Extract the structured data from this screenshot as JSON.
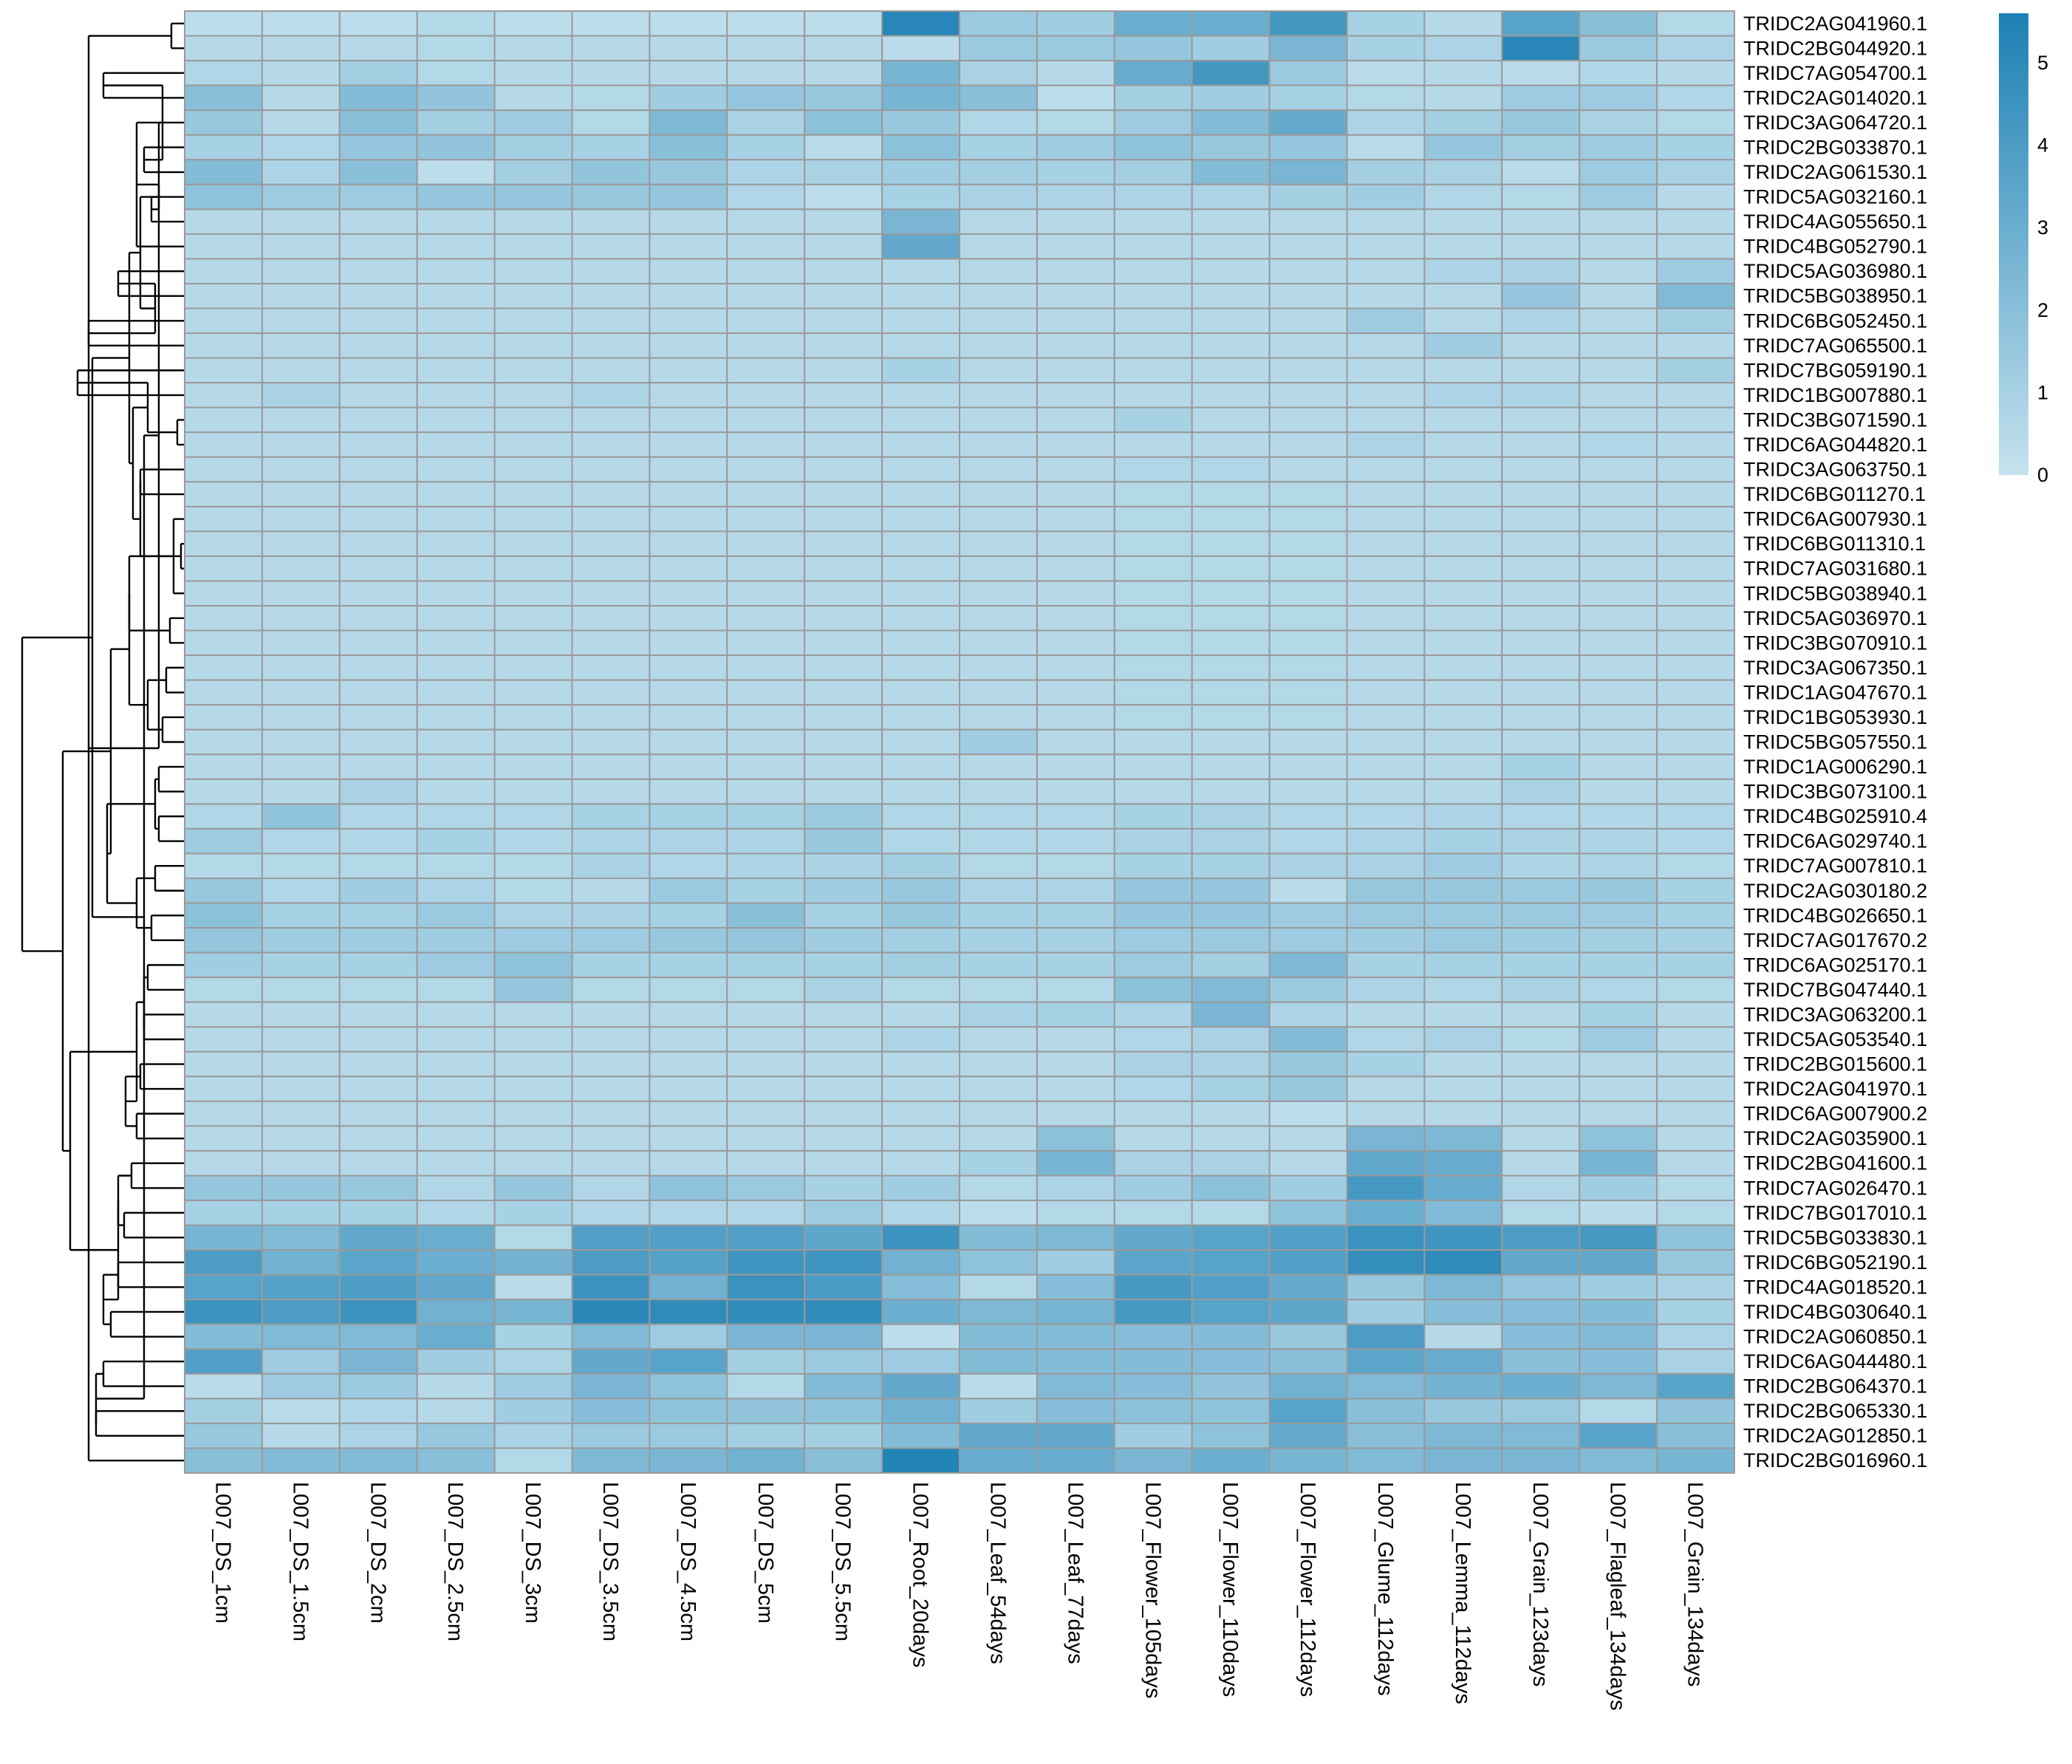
{
  "chart_data": {
    "type": "heatmap",
    "colors": {
      "low": "#c5e2ee",
      "high": "#1c80b4",
      "grid": "#9a9a9a",
      "dendrogram": "#000000"
    },
    "value_range": [
      0,
      5.6
    ],
    "legend": {
      "position": "top-right",
      "ticks": [
        0,
        1,
        2,
        3,
        4,
        5
      ]
    },
    "columns": [
      "L007_DS_1cm",
      "L007_DS_1.5cm",
      "L007_DS_2cm",
      "L007_DS_2.5cm",
      "L007_DS_3cm",
      "L007_DS_3.5cm",
      "L007_DS_4.5cm",
      "L007_DS_5cm",
      "L007_DS_5.5cm",
      "L007_Root_20days",
      "L007_Leaf_54days",
      "L007_Leaf_77days",
      "L007_Flower_105days",
      "L007_Flower_110days",
      "L007_Flower_112days",
      "L007_Glume_112days",
      "L007_Lemma_112days",
      "L007_Grain_123days",
      "L007_Flagleaf_134days",
      "L007_Grain_134days"
    ],
    "rows": [
      "TRIDC2AG041960.1",
      "TRIDC2BG044920.1",
      "TRIDC7AG054700.1",
      "TRIDC2AG014020.1",
      "TRIDC3AG064720.1",
      "TRIDC2BG033870.1",
      "TRIDC2AG061530.1",
      "TRIDC5AG032160.1",
      "TRIDC4AG055650.1",
      "TRIDC4BG052790.1",
      "TRIDC5AG036980.1",
      "TRIDC5BG038950.1",
      "TRIDC6BG052450.1",
      "TRIDC7AG065500.1",
      "TRIDC7BG059190.1",
      "TRIDC1BG007880.1",
      "TRIDC3BG071590.1",
      "TRIDC6AG044820.1",
      "TRIDC3AG063750.1",
      "TRIDC6BG011270.1",
      "TRIDC6AG007930.1",
      "TRIDC6BG011310.1",
      "TRIDC7AG031680.1",
      "TRIDC5BG038940.1",
      "TRIDC5AG036970.1",
      "TRIDC3BG070910.1",
      "TRIDC3AG067350.1",
      "TRIDC1AG047670.1",
      "TRIDC1BG053930.1",
      "TRIDC5BG057550.1",
      "TRIDC1AG006290.1",
      "TRIDC3BG073100.1",
      "TRIDC4BG025910.4",
      "TRIDC6AG029740.1",
      "TRIDC7AG007810.1",
      "TRIDC2AG030180.2",
      "TRIDC4BG026650.1",
      "TRIDC7AG017670.2",
      "TRIDC6AG025170.1",
      "TRIDC7BG047440.1",
      "TRIDC3AG063200.1",
      "TRIDC5AG053540.1",
      "TRIDC2BG015600.1",
      "TRIDC2AG041970.1",
      "TRIDC6AG007900.2",
      "TRIDC2AG035900.1",
      "TRIDC2BG041600.1",
      "TRIDC7AG026470.1",
      "TRIDC7BG017010.1",
      "TRIDC5BG033830.1",
      "TRIDC6BG052190.1",
      "TRIDC4AG018520.1",
      "TRIDC4BG030640.1",
      "TRIDC2AG060850.1",
      "TRIDC6AG044480.1",
      "TRIDC2BG064370.1",
      "TRIDC2BG065330.1",
      "TRIDC2AG012850.1",
      "TRIDC2BG016960.1"
    ],
    "values": [
      [
        0.3,
        0.3,
        0.3,
        0.6,
        0.3,
        0.3,
        0.3,
        0.3,
        0.3,
        5.2,
        1.4,
        1.2,
        3.0,
        3.0,
        4.3,
        1.0,
        0.5,
        3.6,
        2.0,
        0.6
      ],
      [
        0.5,
        0.5,
        0.5,
        0.6,
        0.5,
        0.5,
        0.5,
        0.5,
        0.5,
        0.4,
        1.4,
        1.4,
        1.6,
        1.2,
        2.5,
        1.0,
        0.8,
        5.2,
        1.4,
        0.8
      ],
      [
        0.7,
        0.5,
        1.1,
        0.6,
        0.5,
        0.5,
        0.5,
        0.5,
        0.5,
        2.6,
        0.9,
        0.5,
        3.1,
        4.3,
        1.4,
        0.4,
        0.5,
        0.4,
        0.7,
        0.5
      ],
      [
        2.0,
        0.5,
        2.2,
        1.7,
        0.5,
        0.6,
        1.2,
        1.6,
        1.5,
        2.6,
        2.0,
        0.3,
        1.1,
        1.2,
        1.0,
        0.6,
        0.5,
        1.3,
        1.3,
        0.7
      ],
      [
        1.5,
        0.5,
        2.0,
        1.1,
        1.3,
        0.6,
        2.4,
        0.9,
        1.9,
        1.5,
        0.7,
        0.6,
        1.3,
        2.2,
        3.2,
        0.8,
        1.1,
        1.5,
        0.9,
        0.6
      ],
      [
        1.0,
        0.7,
        1.6,
        1.7,
        1.1,
        1.0,
        2.0,
        1.0,
        0.4,
        1.9,
        1.0,
        1.2,
        1.8,
        1.5,
        1.6,
        0.4,
        1.6,
        1.1,
        1.3,
        1.0
      ],
      [
        2.2,
        0.8,
        2.0,
        0.3,
        1.1,
        1.7,
        1.5,
        0.8,
        0.9,
        1.2,
        1.1,
        1.0,
        1.1,
        2.2,
        2.5,
        1.1,
        0.9,
        0.4,
        1.3,
        0.9
      ],
      [
        1.8,
        1.3,
        1.3,
        1.6,
        1.6,
        1.5,
        1.6,
        0.7,
        0.3,
        1.0,
        0.9,
        0.8,
        0.8,
        0.8,
        1.1,
        1.2,
        0.7,
        0.6,
        1.3,
        0.5
      ],
      [
        0.5,
        0.5,
        0.5,
        0.5,
        0.5,
        0.5,
        0.5,
        0.5,
        0.5,
        2.5,
        0.5,
        0.5,
        0.5,
        0.5,
        0.5,
        0.5,
        0.5,
        0.5,
        0.5,
        0.5
      ],
      [
        0.5,
        0.5,
        0.5,
        0.5,
        0.5,
        0.5,
        0.5,
        0.5,
        0.5,
        3.3,
        0.5,
        0.5,
        0.5,
        0.5,
        0.5,
        0.5,
        0.5,
        0.5,
        0.5,
        0.5
      ],
      [
        0.5,
        0.5,
        0.5,
        0.5,
        0.5,
        0.5,
        0.5,
        0.5,
        0.5,
        0.5,
        0.5,
        0.5,
        0.5,
        0.5,
        0.5,
        0.5,
        0.8,
        0.9,
        0.5,
        1.3
      ],
      [
        0.5,
        0.5,
        0.5,
        0.5,
        0.5,
        0.5,
        0.5,
        0.5,
        0.5,
        0.5,
        0.5,
        0.5,
        0.5,
        0.5,
        0.5,
        0.5,
        0.5,
        1.6,
        0.5,
        2.3
      ],
      [
        0.5,
        0.5,
        0.5,
        0.5,
        0.5,
        0.5,
        0.5,
        0.5,
        0.5,
        0.5,
        0.5,
        0.5,
        0.5,
        0.5,
        0.5,
        1.3,
        0.5,
        0.8,
        0.5,
        1.1
      ],
      [
        0.5,
        0.5,
        0.5,
        0.5,
        0.5,
        0.5,
        0.5,
        0.5,
        0.5,
        0.5,
        0.5,
        0.5,
        0.5,
        0.5,
        0.5,
        0.5,
        1.2,
        0.5,
        0.5,
        0.5
      ],
      [
        0.5,
        0.5,
        0.5,
        0.5,
        0.5,
        0.5,
        0.5,
        0.5,
        0.5,
        1.0,
        0.5,
        0.5,
        0.5,
        0.5,
        0.5,
        0.5,
        0.5,
        0.5,
        0.5,
        1.1
      ],
      [
        0.5,
        0.9,
        0.5,
        0.5,
        0.5,
        0.8,
        0.5,
        0.5,
        0.5,
        0.5,
        0.5,
        0.5,
        0.5,
        0.5,
        0.5,
        0.5,
        0.8,
        0.8,
        0.5,
        0.5
      ],
      [
        0.5,
        0.5,
        0.5,
        0.5,
        0.5,
        0.5,
        0.5,
        0.5,
        0.5,
        0.5,
        0.5,
        0.5,
        1.0,
        0.5,
        0.5,
        0.5,
        0.5,
        0.5,
        0.5,
        0.5
      ],
      [
        0.5,
        0.5,
        0.5,
        0.5,
        0.5,
        0.5,
        0.5,
        0.5,
        0.5,
        0.5,
        0.5,
        0.5,
        0.5,
        0.5,
        0.5,
        0.8,
        0.5,
        0.5,
        0.7,
        0.5
      ],
      [
        0.5,
        0.5,
        0.5,
        0.5,
        0.5,
        0.5,
        0.5,
        0.5,
        0.5,
        0.5,
        0.5,
        0.5,
        0.7,
        0.7,
        0.5,
        0.5,
        0.5,
        0.5,
        0.5,
        0.5
      ],
      [
        0.5,
        0.5,
        0.5,
        0.5,
        0.5,
        0.5,
        0.5,
        0.5,
        0.5,
        0.5,
        0.5,
        0.5,
        0.6,
        0.6,
        0.6,
        0.5,
        0.5,
        0.5,
        0.5,
        0.5
      ],
      [
        0.5,
        0.5,
        0.5,
        0.5,
        0.5,
        0.5,
        0.5,
        0.5,
        0.5,
        0.5,
        0.5,
        0.5,
        0.6,
        0.6,
        0.6,
        0.5,
        0.5,
        0.5,
        0.5,
        0.5
      ],
      [
        0.5,
        0.5,
        0.5,
        0.5,
        0.5,
        0.5,
        0.5,
        0.5,
        0.5,
        0.5,
        0.5,
        0.5,
        0.6,
        0.6,
        0.6,
        0.5,
        0.5,
        0.5,
        0.5,
        0.5
      ],
      [
        0.5,
        0.5,
        0.5,
        0.5,
        0.5,
        0.5,
        0.5,
        0.5,
        0.5,
        0.5,
        0.5,
        0.5,
        0.6,
        0.6,
        0.6,
        0.5,
        0.5,
        0.5,
        0.5,
        0.5
      ],
      [
        0.5,
        0.5,
        0.5,
        0.5,
        0.5,
        0.5,
        0.5,
        0.5,
        0.5,
        0.5,
        0.5,
        0.5,
        0.6,
        0.6,
        0.6,
        0.5,
        0.5,
        0.5,
        0.5,
        0.5
      ],
      [
        0.5,
        0.5,
        0.5,
        0.5,
        0.5,
        0.5,
        0.5,
        0.5,
        0.5,
        0.5,
        0.5,
        0.5,
        0.6,
        0.6,
        0.6,
        0.5,
        0.5,
        0.5,
        0.5,
        0.5
      ],
      [
        0.5,
        0.5,
        0.5,
        0.5,
        0.5,
        0.5,
        0.5,
        0.5,
        0.5,
        0.5,
        0.5,
        0.5,
        0.6,
        0.6,
        0.6,
        0.5,
        0.5,
        0.5,
        0.5,
        0.5
      ],
      [
        0.5,
        0.5,
        0.5,
        0.5,
        0.5,
        0.5,
        0.5,
        0.5,
        0.5,
        0.5,
        0.5,
        0.5,
        0.6,
        0.6,
        0.6,
        0.5,
        0.5,
        0.5,
        0.5,
        0.5
      ],
      [
        0.5,
        0.5,
        0.5,
        0.5,
        0.5,
        0.5,
        0.5,
        0.5,
        0.5,
        0.5,
        0.5,
        0.5,
        0.6,
        0.6,
        0.6,
        0.5,
        0.5,
        0.5,
        0.5,
        0.5
      ],
      [
        0.5,
        0.5,
        0.5,
        0.5,
        0.5,
        0.5,
        0.5,
        0.5,
        0.5,
        0.5,
        0.5,
        0.5,
        0.6,
        0.6,
        0.6,
        0.5,
        0.5,
        0.5,
        0.5,
        0.5
      ],
      [
        0.5,
        0.5,
        0.5,
        0.5,
        0.5,
        0.5,
        0.5,
        0.5,
        0.5,
        0.5,
        1.2,
        0.5,
        0.5,
        0.5,
        0.5,
        0.5,
        0.5,
        0.5,
        0.5,
        0.5
      ],
      [
        0.5,
        0.5,
        0.5,
        0.5,
        0.5,
        0.5,
        0.5,
        0.5,
        0.5,
        0.5,
        0.5,
        0.5,
        0.5,
        0.5,
        0.5,
        0.5,
        0.5,
        1.0,
        0.5,
        0.5
      ],
      [
        0.5,
        0.5,
        0.9,
        0.5,
        0.5,
        0.5,
        0.5,
        0.5,
        0.5,
        0.5,
        0.5,
        0.5,
        0.5,
        0.5,
        0.5,
        0.5,
        0.5,
        0.9,
        0.5,
        0.5
      ],
      [
        0.7,
        1.8,
        0.7,
        0.7,
        0.7,
        1.0,
        1.0,
        1.0,
        1.4,
        0.7,
        0.7,
        0.7,
        1.0,
        0.9,
        0.7,
        0.7,
        0.8,
        0.7,
        0.7,
        0.7
      ],
      [
        1.3,
        0.7,
        0.7,
        1.0,
        0.7,
        0.8,
        0.8,
        0.8,
        1.5,
        0.7,
        0.7,
        0.7,
        0.9,
        0.9,
        0.7,
        0.8,
        1.0,
        0.9,
        0.8,
        0.7
      ],
      [
        0.6,
        0.6,
        0.6,
        0.6,
        0.6,
        0.9,
        0.7,
        0.8,
        0.9,
        1.1,
        0.6,
        0.6,
        1.0,
        1.0,
        0.9,
        0.9,
        1.3,
        0.8,
        0.8,
        0.6
      ],
      [
        1.5,
        0.7,
        1.2,
        0.8,
        0.6,
        0.5,
        1.4,
        1.0,
        1.2,
        1.5,
        0.8,
        0.8,
        1.6,
        1.6,
        0.4,
        1.5,
        1.5,
        1.4,
        1.5,
        1.0
      ],
      [
        1.9,
        1.0,
        1.0,
        1.4,
        0.8,
        0.9,
        1.0,
        2.0,
        1.0,
        1.5,
        1.0,
        1.0,
        1.6,
        1.6,
        1.3,
        1.4,
        1.4,
        1.4,
        1.3,
        1.0
      ],
      [
        1.6,
        1.2,
        1.2,
        1.2,
        1.3,
        1.3,
        1.5,
        1.6,
        1.2,
        1.1,
        1.0,
        1.0,
        1.3,
        1.4,
        1.3,
        1.2,
        1.4,
        1.2,
        1.1,
        1.0
      ],
      [
        1.2,
        1.0,
        1.0,
        1.3,
        1.8,
        1.0,
        1.0,
        1.0,
        1.0,
        1.1,
        1.0,
        1.0,
        1.3,
        1.1,
        2.4,
        1.0,
        1.0,
        1.0,
        1.0,
        1.0
      ],
      [
        0.6,
        0.6,
        0.6,
        0.6,
        1.6,
        0.6,
        0.6,
        0.6,
        0.9,
        0.6,
        0.6,
        0.6,
        1.9,
        2.3,
        1.4,
        0.8,
        0.7,
        0.9,
        0.7,
        0.6
      ],
      [
        0.5,
        0.5,
        0.5,
        0.5,
        0.5,
        0.5,
        0.5,
        0.5,
        0.5,
        0.5,
        0.9,
        1.0,
        0.8,
        2.5,
        0.8,
        0.5,
        0.5,
        0.5,
        1.0,
        0.5
      ],
      [
        0.5,
        0.5,
        0.5,
        0.5,
        0.5,
        0.5,
        0.5,
        0.5,
        0.5,
        0.8,
        0.5,
        0.5,
        0.7,
        0.9,
        2.2,
        0.7,
        0.9,
        0.6,
        1.3,
        0.5
      ],
      [
        0.5,
        0.5,
        0.5,
        0.5,
        0.5,
        0.5,
        0.5,
        0.5,
        0.5,
        0.5,
        0.5,
        0.5,
        0.9,
        0.9,
        1.5,
        1.0,
        0.5,
        0.5,
        0.5,
        0.5
      ],
      [
        0.5,
        0.5,
        0.5,
        0.5,
        0.5,
        0.5,
        0.5,
        0.5,
        0.5,
        0.5,
        0.5,
        0.5,
        0.7,
        1.0,
        1.5,
        0.5,
        0.5,
        0.5,
        0.5,
        0.5
      ],
      [
        0.5,
        0.5,
        0.5,
        0.5,
        0.5,
        0.5,
        0.5,
        0.5,
        0.5,
        0.5,
        0.5,
        0.5,
        0.5,
        0.5,
        0.3,
        0.5,
        0.5,
        0.5,
        0.5,
        0.5
      ],
      [
        0.5,
        0.5,
        0.5,
        0.5,
        0.5,
        0.5,
        0.5,
        0.5,
        0.5,
        0.5,
        0.5,
        1.9,
        0.5,
        0.5,
        0.5,
        2.5,
        2.4,
        0.5,
        1.8,
        0.5
      ],
      [
        0.5,
        0.5,
        0.5,
        0.5,
        0.5,
        0.5,
        0.5,
        0.5,
        0.5,
        0.5,
        1.0,
        2.6,
        0.9,
        0.9,
        0.5,
        3.3,
        3.1,
        0.5,
        2.6,
        0.5
      ],
      [
        1.6,
        1.6,
        1.5,
        0.7,
        1.6,
        0.7,
        1.8,
        1.4,
        1.0,
        1.2,
        0.6,
        0.8,
        1.2,
        1.9,
        1.2,
        4.2,
        3.1,
        0.7,
        1.2,
        0.6
      ],
      [
        1.0,
        1.0,
        1.0,
        0.7,
        1.0,
        0.7,
        0.7,
        0.7,
        1.3,
        0.7,
        0.3,
        0.6,
        0.6,
        0.6,
        1.8,
        3.0,
        2.3,
        0.6,
        0.4,
        0.6
      ],
      [
        2.6,
        2.3,
        3.3,
        3.0,
        0.6,
        3.8,
        3.8,
        3.8,
        3.4,
        4.5,
        2.2,
        2.4,
        3.3,
        3.6,
        3.8,
        4.6,
        4.4,
        4.0,
        4.2,
        1.8
      ],
      [
        4.0,
        2.8,
        3.5,
        2.9,
        2.7,
        4.0,
        3.7,
        4.4,
        4.4,
        2.8,
        1.8,
        1.2,
        3.5,
        3.6,
        3.8,
        4.8,
        5.0,
        3.3,
        3.3,
        1.5
      ],
      [
        3.6,
        3.7,
        3.9,
        3.3,
        0.4,
        4.5,
        2.8,
        4.6,
        4.1,
        2.1,
        0.6,
        2.1,
        4.2,
        3.8,
        3.2,
        1.5,
        2.4,
        1.6,
        1.2,
        0.9
      ],
      [
        4.5,
        4.0,
        4.5,
        2.8,
        2.6,
        5.1,
        5.0,
        4.9,
        4.9,
        2.9,
        2.4,
        2.6,
        4.2,
        3.6,
        3.4,
        1.2,
        2.1,
        2.1,
        2.2,
        1.0
      ],
      [
        2.2,
        2.3,
        2.3,
        3.0,
        1.0,
        2.3,
        1.3,
        2.5,
        2.5,
        0.3,
        2.2,
        2.2,
        2.1,
        2.2,
        1.5,
        4.0,
        0.5,
        2.1,
        2.3,
        0.8
      ],
      [
        3.8,
        1.3,
        2.5,
        1.2,
        0.8,
        3.3,
        3.6,
        1.1,
        1.4,
        1.3,
        2.2,
        2.2,
        2.2,
        2.1,
        2.0,
        3.5,
        3.1,
        2.0,
        2.1,
        0.9
      ],
      [
        0.4,
        1.3,
        1.4,
        0.5,
        1.3,
        2.5,
        1.8,
        0.6,
        2.3,
        3.3,
        0.4,
        2.3,
        2.1,
        1.7,
        2.8,
        2.3,
        2.7,
        2.9,
        2.4,
        3.6
      ],
      [
        1.1,
        0.4,
        0.7,
        0.5,
        1.2,
        2.1,
        1.8,
        1.7,
        1.8,
        2.8,
        1.2,
        2.1,
        1.9,
        1.8,
        3.6,
        2.0,
        1.5,
        1.4,
        0.6,
        1.7
      ],
      [
        1.5,
        0.5,
        0.8,
        1.5,
        0.9,
        1.4,
        1.4,
        1.1,
        1.1,
        2.2,
        3.3,
        3.3,
        1.2,
        1.8,
        3.2,
        2.0,
        2.4,
        2.3,
        3.6,
        2.0
      ],
      [
        2.0,
        2.2,
        2.2,
        2.0,
        0.6,
        2.4,
        2.5,
        2.8,
        2.0,
        5.4,
        3.1,
        3.1,
        2.5,
        2.9,
        2.6,
        2.3,
        2.5,
        2.5,
        2.3,
        2.6
      ]
    ]
  }
}
